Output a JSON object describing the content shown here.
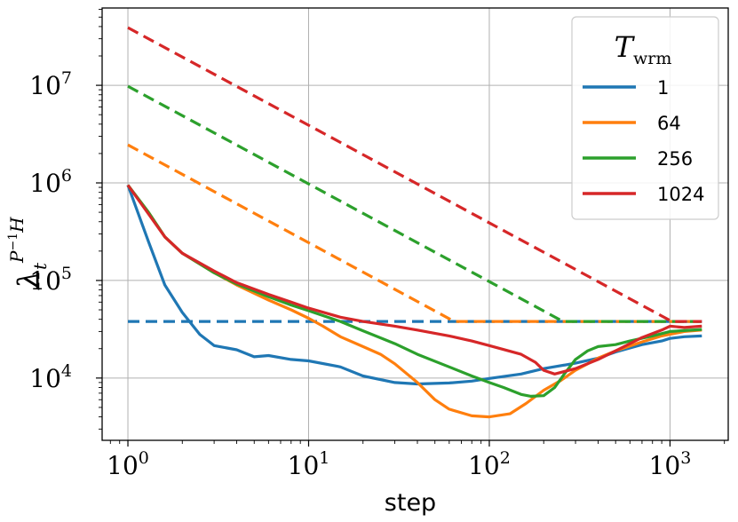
{
  "chart_data": {
    "type": "line",
    "xlabel": "step",
    "ylabel": {
      "base": "λ",
      "sub": "t",
      "sup": "P",
      "sup_exp": "−1",
      "sup_tail": "H"
    },
    "x_scale": "log",
    "y_scale": "log",
    "xlim": [
      0.72,
      2100
    ],
    "ylim": [
      2300,
      62000000
    ],
    "x_ticks": [
      {
        "value": 1,
        "base": "10",
        "exp": "0"
      },
      {
        "value": 10,
        "base": "10",
        "exp": "1"
      },
      {
        "value": 100,
        "base": "10",
        "exp": "2"
      },
      {
        "value": 1000,
        "base": "10",
        "exp": "3"
      }
    ],
    "y_ticks": [
      {
        "value": 10000,
        "base": "10",
        "exp": "4"
      },
      {
        "value": 100000,
        "base": "10",
        "exp": "5"
      },
      {
        "value": 1000000,
        "base": "10",
        "exp": "6"
      },
      {
        "value": 10000000,
        "base": "10",
        "exp": "7"
      }
    ],
    "grid": true,
    "legend": {
      "title_base": "T",
      "title_sub": "wrm",
      "placement": "top-right"
    },
    "series": [
      {
        "name": "1",
        "color": "#1f77b4",
        "actual": [
          [
            1,
            950000
          ],
          [
            1.3,
            250000
          ],
          [
            1.6,
            90000
          ],
          [
            2,
            47000
          ],
          [
            2.5,
            28000
          ],
          [
            3,
            21500
          ],
          [
            4,
            19500
          ],
          [
            5,
            16500
          ],
          [
            6,
            17000
          ],
          [
            8,
            15500
          ],
          [
            10,
            15000
          ],
          [
            15,
            13000
          ],
          [
            20,
            10500
          ],
          [
            30,
            9000
          ],
          [
            40,
            8700
          ],
          [
            60,
            8900
          ],
          [
            80,
            9300
          ],
          [
            100,
            9900
          ],
          [
            150,
            11000
          ],
          [
            200,
            12500
          ],
          [
            300,
            14200
          ],
          [
            400,
            16000
          ],
          [
            500,
            18500
          ],
          [
            700,
            22000
          ],
          [
            900,
            24000
          ],
          [
            1000,
            25500
          ],
          [
            1200,
            26500
          ],
          [
            1500,
            27000
          ]
        ],
        "schedule": [
          [
            1,
            38000
          ],
          [
            1500,
            38000
          ]
        ]
      },
      {
        "name": "64",
        "color": "#ff7f0e",
        "actual": [
          [
            1,
            950000
          ],
          [
            1.3,
            500000
          ],
          [
            1.6,
            280000
          ],
          [
            2,
            190000
          ],
          [
            3,
            120000
          ],
          [
            4,
            90000
          ],
          [
            6,
            63000
          ],
          [
            8,
            50000
          ],
          [
            10,
            41000
          ],
          [
            12,
            34000
          ],
          [
            15,
            26500
          ],
          [
            20,
            21000
          ],
          [
            25,
            17500
          ],
          [
            30,
            14000
          ],
          [
            40,
            9000
          ],
          [
            50,
            6000
          ],
          [
            60,
            4800
          ],
          [
            80,
            4100
          ],
          [
            100,
            4000
          ],
          [
            130,
            4300
          ],
          [
            160,
            5500
          ],
          [
            200,
            7500
          ],
          [
            250,
            9500
          ],
          [
            300,
            12000
          ],
          [
            350,
            14000
          ],
          [
            400,
            16000
          ],
          [
            500,
            19000
          ],
          [
            700,
            23500
          ],
          [
            900,
            27000
          ],
          [
            1200,
            30000
          ],
          [
            1500,
            31000
          ]
        ],
        "schedule": [
          [
            1,
            2450000
          ],
          [
            64,
            38000
          ],
          [
            1500,
            38000
          ]
        ]
      },
      {
        "name": "256",
        "color": "#2ca02c",
        "actual": [
          [
            1,
            950000
          ],
          [
            1.3,
            500000
          ],
          [
            1.6,
            280000
          ],
          [
            2,
            190000
          ],
          [
            3,
            120000
          ],
          [
            4,
            92000
          ],
          [
            6,
            68000
          ],
          [
            8,
            56000
          ],
          [
            10,
            49000
          ],
          [
            15,
            38000
          ],
          [
            20,
            30500
          ],
          [
            30,
            22500
          ],
          [
            40,
            17500
          ],
          [
            60,
            13000
          ],
          [
            80,
            10500
          ],
          [
            100,
            9000
          ],
          [
            120,
            8000
          ],
          [
            150,
            6800
          ],
          [
            170,
            6500
          ],
          [
            200,
            6600
          ],
          [
            230,
            8000
          ],
          [
            260,
            11000
          ],
          [
            300,
            15500
          ],
          [
            350,
            19000
          ],
          [
            400,
            21000
          ],
          [
            500,
            22000
          ],
          [
            600,
            24000
          ],
          [
            800,
            27000
          ],
          [
            1000,
            30000
          ],
          [
            1500,
            31500
          ]
        ],
        "schedule": [
          [
            1,
            9800000
          ],
          [
            256,
            38000
          ],
          [
            1500,
            38000
          ]
        ]
      },
      {
        "name": "1024",
        "color": "#d62728",
        "actual": [
          [
            1,
            950000
          ],
          [
            1.3,
            480000
          ],
          [
            1.6,
            280000
          ],
          [
            2,
            190000
          ],
          [
            3,
            125000
          ],
          [
            4,
            95000
          ],
          [
            6,
            72000
          ],
          [
            8,
            60000
          ],
          [
            10,
            52000
          ],
          [
            15,
            42000
          ],
          [
            20,
            38000
          ],
          [
            30,
            34000
          ],
          [
            40,
            31000
          ],
          [
            60,
            27000
          ],
          [
            80,
            24000
          ],
          [
            100,
            21500
          ],
          [
            150,
            17500
          ],
          [
            180,
            14500
          ],
          [
            200,
            12000
          ],
          [
            230,
            11000
          ],
          [
            300,
            12500
          ],
          [
            400,
            15500
          ],
          [
            500,
            19000
          ],
          [
            700,
            26000
          ],
          [
            900,
            31000
          ],
          [
            1000,
            34000
          ],
          [
            1200,
            33000
          ],
          [
            1500,
            34000
          ]
        ],
        "schedule": [
          [
            1,
            39000000
          ],
          [
            1024,
            38000
          ],
          [
            1500,
            38000
          ]
        ]
      }
    ]
  }
}
